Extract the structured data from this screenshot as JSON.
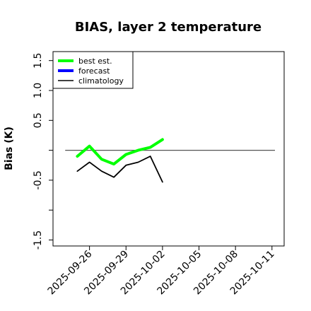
{
  "chart_data": {
    "type": "line",
    "title": "BIAS, layer 2 temperature",
    "xlabel": "",
    "ylabel": "Bias (K)",
    "x_ticks": [
      "2025-09-26",
      "2025-09-29",
      "2025-10-02",
      "2025-10-05",
      "2025-10-08",
      "2025-10-11"
    ],
    "highlight_tick": "2025-10-02",
    "highlight_color": "#228B22",
    "xlim": [
      "2025-09-23",
      "2025-10-12"
    ],
    "ylim": [
      -1.6,
      1.65
    ],
    "y_ticks": [
      -1.5,
      -1.0,
      -0.5,
      0.0,
      0.5,
      1.0,
      1.5
    ],
    "y_tick_labels": [
      "-1.5",
      "",
      "-0.5",
      "",
      "0.5",
      "1.0",
      "1.5"
    ],
    "reference_line": 0,
    "legend_position": "top-left",
    "series": [
      {
        "name": "best est.",
        "color": "#00ff00",
        "x": [
          "2025-09-25",
          "2025-09-26",
          "2025-09-27",
          "2025-09-28",
          "2025-09-29",
          "2025-09-30",
          "2025-10-01",
          "2025-10-02"
        ],
        "values": [
          -0.1,
          0.07,
          -0.15,
          -0.23,
          -0.07,
          0.0,
          0.05,
          0.18
        ]
      },
      {
        "name": "forecast",
        "color": "#0000ff",
        "x": [],
        "values": []
      },
      {
        "name": "climatology",
        "color": "#000000",
        "x": [
          "2025-09-25",
          "2025-09-26",
          "2025-09-27",
          "2025-09-28",
          "2025-09-29",
          "2025-09-30",
          "2025-10-01",
          "2025-10-02"
        ],
        "values": [
          -0.35,
          -0.2,
          -0.35,
          -0.45,
          -0.25,
          -0.2,
          -0.1,
          -0.53
        ]
      }
    ]
  }
}
